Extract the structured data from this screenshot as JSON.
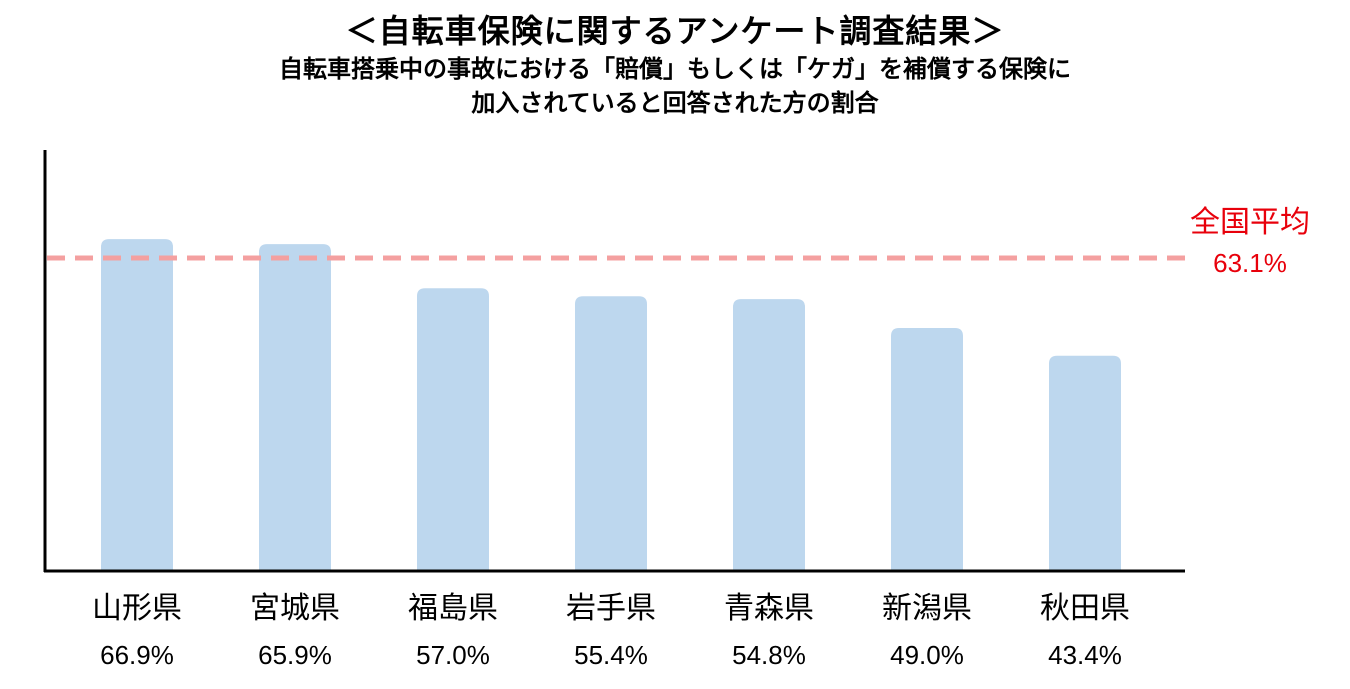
{
  "chart_data": {
    "type": "bar",
    "title": "＜自転車保険に関するアンケート調査結果＞",
    "subtitle_lines": [
      "自転車搭乗中の事故における「賠償」もしくは「ケガ」を補償する保険に",
      "加入されていると回答された方の割合"
    ],
    "categories": [
      "山形県",
      "宮城県",
      "福島県",
      "岩手県",
      "青森県",
      "新潟県",
      "秋田県"
    ],
    "values": [
      66.9,
      65.9,
      57.0,
      55.4,
      54.8,
      49.0,
      43.4
    ],
    "value_labels": [
      "66.9%",
      "65.9%",
      "57.0%",
      "55.4%",
      "54.8%",
      "49.0%",
      "43.4%"
    ],
    "reference_line": {
      "label": "全国平均",
      "value": 63.1,
      "value_label": "63.1%",
      "style": "dashed"
    },
    "ylim": [
      0,
      80
    ],
    "grid": false,
    "colors": {
      "bar": "#bdd7ee",
      "reference": "#f4a0a0",
      "reference_text": "#e8000b",
      "axis": "#000000"
    }
  }
}
